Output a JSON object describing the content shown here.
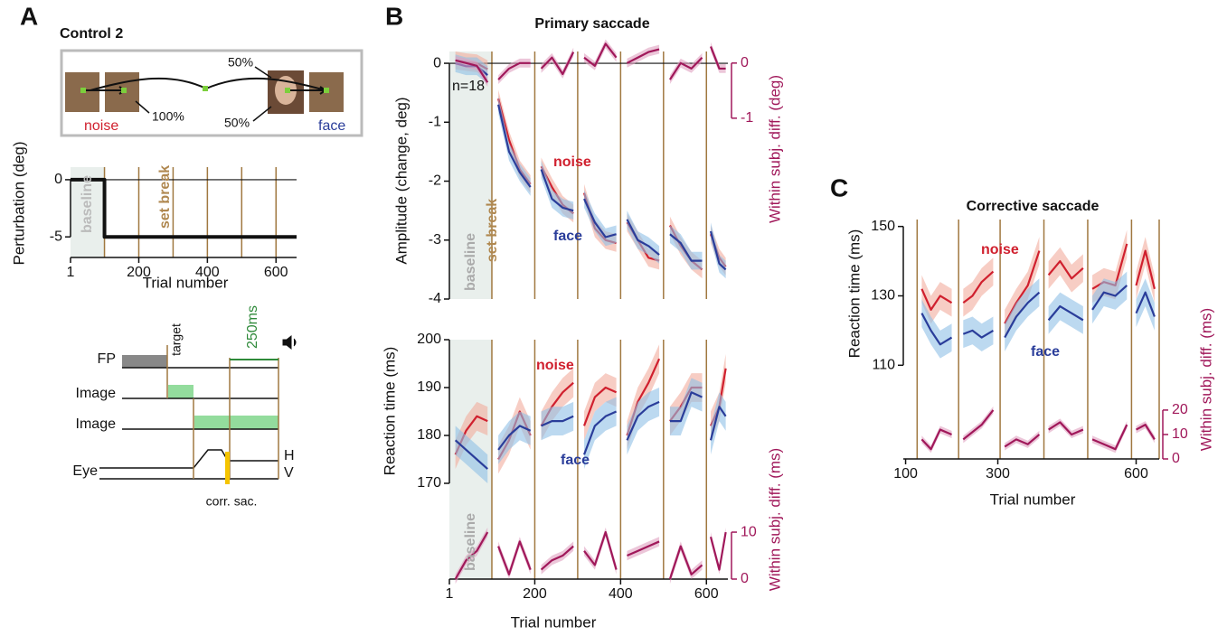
{
  "panel_labels": [
    "A",
    "B",
    "C"
  ],
  "panel_a": {
    "title": "Control 2",
    "noise_label": "noise",
    "face_label": "face",
    "prob_100": "100%",
    "prob_50_top": "50%",
    "prob_50_bottom": "50%",
    "timing": {
      "fp": "FP",
      "target": "target",
      "image1": "Image",
      "image2": "Image",
      "eye": "Eye",
      "h": "H",
      "v": "V",
      "corr_sac": "corr. sac.",
      "duration": "250ms"
    }
  },
  "chart_data": [
    {
      "type": "line",
      "ylabel": "Perturbation (deg)",
      "xlabel": "Trial number",
      "x": [
        1,
        100,
        100,
        660
      ],
      "xlim": [
        1,
        660
      ],
      "xticks": [
        1,
        200,
        400,
        600
      ],
      "ylim": [
        -6.8,
        1.1
      ],
      "yticks": [
        0,
        -5
      ],
      "reference_line": 0,
      "shaded_range": [
        1,
        100
      ],
      "breaks": [
        100,
        200,
        300,
        400,
        500,
        600
      ],
      "annotations": [
        "baseline",
        "set break"
      ],
      "series": [
        {
          "color": "#111111",
          "values": [
            0,
            0,
            -5,
            -5
          ]
        }
      ]
    },
    {
      "type": "line",
      "title": "Primary saccade",
      "ylabel": "Amplitude (change, deg)",
      "y2label": "Within subj. diff. (deg)",
      "x": [
        15,
        40,
        65,
        90,
        100,
        115,
        140,
        165,
        190,
        200,
        215,
        240,
        265,
        290,
        300,
        315,
        340,
        365,
        390,
        400,
        415,
        440,
        465,
        490,
        500,
        515,
        540,
        565,
        590,
        600,
        610,
        630,
        645
      ],
      "xlim": [
        1,
        650
      ],
      "ylim": [
        -4,
        0.2
      ],
      "yticks": [
        0,
        -1,
        -2,
        -3,
        -4
      ],
      "y2lim": [
        -4.28,
        0.21
      ],
      "y2ticks": [
        0,
        -1
      ],
      "reference_line": 0,
      "shaded_range": [
        1,
        100
      ],
      "breaks": [
        100,
        200,
        300,
        400,
        500,
        600
      ],
      "annotations": [
        "n=18",
        "baseline",
        "set break"
      ],
      "series": [
        {
          "name": "noise",
          "color": "#d0202e",
          "error": 0.15,
          "values": [
            0.05,
            0.02,
            0,
            -0.1,
            null,
            -0.6,
            -1.3,
            -1.8,
            -2.05,
            null,
            -1.75,
            -2.1,
            -2.4,
            -2.55,
            null,
            -2.2,
            -2.8,
            -3.0,
            -3.05,
            null,
            -2.7,
            -3.0,
            -3.3,
            -3.35,
            null,
            -2.75,
            -3.1,
            -3.35,
            -3.5,
            null,
            -2.9,
            -3.3,
            -3.45
          ]
        },
        {
          "name": "face",
          "color": "#2a3d9a",
          "error": 0.15,
          "values": [
            0,
            -0.05,
            -0.05,
            -0.2,
            null,
            -0.7,
            -1.5,
            -1.85,
            -2.1,
            null,
            -1.8,
            -2.3,
            -2.45,
            -2.5,
            null,
            -2.3,
            -2.7,
            -2.95,
            -2.9,
            null,
            -2.65,
            -3.0,
            -3.1,
            -3.25,
            null,
            -2.9,
            -3.05,
            -3.35,
            -3.35,
            null,
            -2.85,
            -3.4,
            -3.5
          ]
        },
        {
          "color": "#a0185a",
          "axis": "y2",
          "error": 0.08,
          "values": [
            0.05,
            0,
            -0.05,
            -0.35,
            null,
            -0.3,
            -0.1,
            0,
            0,
            null,
            -0.1,
            0.1,
            -0.2,
            0.2,
            null,
            0.1,
            -0.05,
            0.35,
            0.1,
            null,
            0,
            0.1,
            0.2,
            0.25,
            null,
            -0.3,
            0,
            -0.1,
            0.1,
            null,
            0.3,
            -0.1,
            -0.1
          ]
        }
      ]
    },
    {
      "type": "line",
      "ylabel": "Reaction time (ms)",
      "y2label": "Within subj. diff. (ms)",
      "xlabel": "Trial number",
      "x": [
        15,
        40,
        65,
        90,
        100,
        115,
        140,
        165,
        190,
        200,
        215,
        240,
        265,
        290,
        300,
        315,
        340,
        365,
        390,
        400,
        415,
        440,
        465,
        490,
        500,
        515,
        540,
        565,
        590,
        600,
        610,
        630,
        645
      ],
      "xlim": [
        1,
        650
      ],
      "xticks": [
        1,
        200,
        400,
        600
      ],
      "ylim": [
        150,
        200
      ],
      "yticks": [
        170,
        180,
        190,
        200
      ],
      "y2lim": [
        0,
        51
      ],
      "y2ticks": [
        0,
        10
      ],
      "shaded_range": [
        1,
        100
      ],
      "breaks": [
        100,
        200,
        300,
        400,
        500,
        600
      ],
      "annotations": [
        "baseline"
      ],
      "series": [
        {
          "name": "noise",
          "color": "#d0202e",
          "error": 3,
          "values": [
            176,
            181,
            184,
            183,
            null,
            175,
            179,
            185,
            180,
            null,
            182,
            186,
            189,
            191,
            null,
            182,
            188,
            190,
            189,
            null,
            180,
            187,
            191,
            196,
            null,
            183,
            186,
            190,
            190,
            null,
            182,
            186,
            194
          ]
        },
        {
          "name": "face",
          "color": "#2a3d9a",
          "error": 3,
          "values": [
            179,
            177,
            175,
            173,
            null,
            177,
            180,
            182,
            181,
            null,
            182,
            183,
            183,
            184,
            null,
            176,
            182,
            184,
            185,
            null,
            179,
            184,
            186,
            187,
            null,
            183,
            183,
            189,
            188,
            null,
            179,
            186,
            184
          ]
        },
        {
          "color": "#a0185a",
          "axis": "y2",
          "error": 1,
          "values": [
            0,
            4,
            6,
            10,
            null,
            7,
            1,
            8,
            2,
            null,
            2,
            4,
            5,
            7,
            null,
            6,
            3,
            10,
            2,
            null,
            5,
            6,
            7,
            8,
            null,
            0,
            7,
            1,
            3,
            null,
            9,
            2,
            10
          ]
        }
      ]
    },
    {
      "type": "line",
      "title": "Corrective saccade",
      "ylabel": "Reaction time (ms)",
      "y2label": "Within subj. diff. (ms)",
      "xlabel": "Trial number",
      "x": [
        135,
        155,
        175,
        200,
        215,
        225,
        245,
        265,
        290,
        305,
        315,
        340,
        365,
        390,
        400,
        410,
        435,
        460,
        485,
        495,
        505,
        530,
        555,
        580,
        590,
        600,
        620,
        640
      ],
      "xlim": [
        95,
        650
      ],
      "xticks": [
        100,
        300,
        600
      ],
      "ylim": [
        83,
        152
      ],
      "yticks": [
        110,
        130,
        150
      ],
      "y2lim": [
        0,
        98
      ],
      "y2ticks": [
        0,
        10,
        20
      ],
      "breaks": [
        125,
        215,
        305,
        400,
        495,
        590,
        650
      ],
      "series": [
        {
          "name": "noise",
          "color": "#d0202e",
          "error": 4,
          "values": [
            132,
            126,
            130,
            128,
            null,
            128,
            130,
            134,
            137,
            null,
            122,
            128,
            133,
            143,
            null,
            136,
            140,
            135,
            138,
            null,
            132,
            134,
            133,
            145,
            null,
            133,
            143,
            132
          ]
        },
        {
          "name": "face",
          "color": "#2a3d9a",
          "error": 4,
          "values": [
            125,
            120,
            116,
            118,
            null,
            119,
            120,
            118,
            120,
            null,
            118,
            124,
            128,
            131,
            null,
            123,
            127,
            125,
            123,
            null,
            126,
            131,
            130,
            133,
            null,
            125,
            131,
            124
          ]
        },
        {
          "color": "#a0185a",
          "axis": "y2",
          "error": 1.5,
          "values": [
            8,
            4,
            12,
            10,
            null,
            8,
            11,
            14,
            20,
            null,
            5,
            8,
            6,
            10,
            null,
            12,
            15,
            10,
            12,
            null,
            8,
            6,
            4,
            14,
            null,
            12,
            14,
            8
          ]
        }
      ]
    }
  ]
}
